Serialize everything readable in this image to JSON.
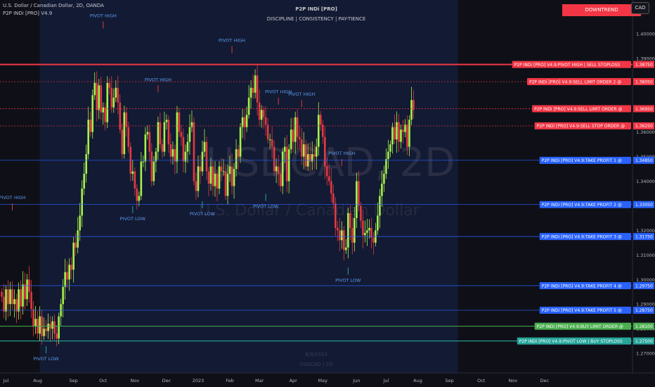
{
  "header": {
    "symbol_line": "U.S. Dollar / Canadian Dollar, 2D, OANDA",
    "indicator_line": "P2P INDi [PRO] V4.9",
    "title": "P2P INDi [PRO]",
    "subtitle": "DISCIPLINE  |  CONSISTENCY  |  PAY-TIENCE",
    "trend_badge": "DOWNTREND",
    "currency": "CAD"
  },
  "watermark": {
    "symbol": "USDCAD, 2D",
    "name": "U.S. Dollar / Canadian Dollar",
    "date": "8/9/2023",
    "small": "USDCAD | 2D"
  },
  "colors": {
    "background": "#0f1017",
    "highlight": "#131a33",
    "bull": "#a6f24a",
    "bear": "#e23a42",
    "sell_red": "#f23645",
    "take_profit_blue": "#2962ff",
    "buy_green": "#4caf50",
    "buy_stop_teal": "#26a69a",
    "annotation": "#5b9cf0"
  },
  "chart_data": {
    "type": "candlestick",
    "y_axis": {
      "min": 1.262,
      "max": 1.412,
      "ticks": [
        "1.27000",
        "1.28000",
        "1.29000",
        "1.30000",
        "1.31000",
        "1.32000",
        "1.34000",
        "1.35000",
        "1.36000",
        "1.39000",
        "1.40000"
      ]
    },
    "x_axis": {
      "ticks": [
        {
          "label": "Jul",
          "bar": 2
        },
        {
          "label": "Aug",
          "bar": 17
        },
        {
          "label": "Sep",
          "bar": 34
        },
        {
          "label": "Oct",
          "bar": 48
        },
        {
          "label": "Nov",
          "bar": 63
        },
        {
          "label": "Dec",
          "bar": 78
        },
        {
          "label": "2023",
          "bar": 93
        },
        {
          "label": "Feb",
          "bar": 108
        },
        {
          "label": "Mar",
          "bar": 122
        },
        {
          "label": "Apr",
          "bar": 138
        },
        {
          "label": "May",
          "bar": 152
        },
        {
          "label": "Jun",
          "bar": 168
        },
        {
          "label": "Jul",
          "bar": 182
        },
        {
          "label": "Aug",
          "bar": 197
        },
        {
          "label": "Sep",
          "bar": 212
        },
        {
          "label": "Oct",
          "bar": 227
        },
        {
          "label": "Nov",
          "bar": 242
        },
        {
          "label": "Dec",
          "bar": 257
        }
      ]
    },
    "highlight_range": {
      "start_bar": 18,
      "end_bar": 216
    },
    "close": [
      1.293,
      1.287,
      1.296,
      1.29,
      1.296,
      1.29,
      1.292,
      1.287,
      1.296,
      1.289,
      1.298,
      1.292,
      1.3,
      1.295,
      1.288,
      1.281,
      1.284,
      1.278,
      1.285,
      1.277,
      1.28,
      1.279,
      1.282,
      1.28,
      1.283,
      1.278,
      1.276,
      1.285,
      1.29,
      1.297,
      1.303,
      1.3,
      1.306,
      1.304,
      1.315,
      1.313,
      1.32,
      1.326,
      1.337,
      1.343,
      1.351,
      1.365,
      1.36,
      1.375,
      1.38,
      1.369,
      1.379,
      1.368,
      1.37,
      1.364,
      1.38,
      1.378,
      1.37,
      1.374,
      1.378,
      1.372,
      1.361,
      1.351,
      1.368,
      1.362,
      1.354,
      1.343,
      1.344,
      1.337,
      1.332,
      1.334,
      1.348,
      1.348,
      1.359,
      1.36,
      1.352,
      1.34,
      1.348,
      1.352,
      1.364,
      1.355,
      1.352,
      1.364,
      1.365,
      1.355,
      1.35,
      1.353,
      1.348,
      1.368,
      1.36,
      1.358,
      1.348,
      1.352,
      1.356,
      1.362,
      1.364,
      1.34,
      1.336,
      1.346,
      1.344,
      1.352,
      1.356,
      1.344,
      1.339,
      1.346,
      1.338,
      1.343,
      1.337,
      1.346,
      1.344,
      1.344,
      1.334,
      1.343,
      1.346,
      1.338,
      1.345,
      1.353,
      1.35,
      1.362,
      1.366,
      1.362,
      1.367,
      1.374,
      1.378,
      1.376,
      1.383,
      1.372,
      1.365,
      1.369,
      1.366,
      1.363,
      1.357,
      1.357,
      1.354,
      1.344,
      1.346,
      1.343,
      1.338,
      1.352,
      1.354,
      1.34,
      1.353,
      1.361,
      1.356,
      1.366,
      1.358,
      1.357,
      1.35,
      1.355,
      1.346,
      1.351,
      1.348,
      1.351,
      1.35,
      1.354,
      1.367,
      1.363,
      1.358,
      1.346,
      1.342,
      1.34,
      1.335,
      1.331,
      1.321,
      1.32,
      1.316,
      1.32,
      1.312,
      1.313,
      1.327,
      1.321,
      1.315,
      1.325,
      1.34,
      1.33,
      1.324,
      1.318,
      1.319,
      1.32,
      1.321,
      1.317,
      1.315,
      1.32,
      1.326,
      1.334,
      1.339,
      1.343,
      1.349,
      1.352,
      1.355,
      1.362,
      1.357,
      1.364,
      1.356,
      1.361,
      1.36,
      1.363,
      1.354,
      1.365,
      1.373,
      1.369
    ],
    "annotations": [
      {
        "text": "PIVOT HIGH",
        "bar": 5,
        "price": 1.327,
        "kind": "high"
      },
      {
        "text": "PIVOT LOW",
        "bar": 21,
        "price": 1.274,
        "kind": "low"
      },
      {
        "text": "PIVOT HIGH",
        "bar": 48,
        "price": 1.401,
        "kind": "high"
      },
      {
        "text": "PIVOT LOW",
        "bar": 62,
        "price": 1.331,
        "kind": "low"
      },
      {
        "text": "PIVOT HIGH",
        "bar": 74,
        "price": 1.375,
        "kind": "high"
      },
      {
        "text": "PIVOT LOW",
        "bar": 95,
        "price": 1.333,
        "kind": "low"
      },
      {
        "text": "PIVOT HIGH",
        "bar": 109,
        "price": 1.391,
        "kind": "high"
      },
      {
        "text": "PIVOT LOW",
        "bar": 125,
        "price": 1.336,
        "kind": "low"
      },
      {
        "text": "PIVOT HIGH",
        "bar": 131,
        "price": 1.37,
        "kind": "high"
      },
      {
        "text": "PIVOT HIGH",
        "bar": 142,
        "price": 1.369,
        "kind": "high"
      },
      {
        "text": "PIVOT HIGH",
        "bar": 161,
        "price": 1.345,
        "kind": "high"
      },
      {
        "text": "PIVOT LOW",
        "bar": 164,
        "price": 1.306,
        "kind": "low"
      }
    ],
    "levels": [
      {
        "label": "P2P INDi [PRO] V4.9:PIVOT HIGH | SELL STOPLOSS",
        "value": "1.38750",
        "price": 1.3875,
        "kind": "sell_stop"
      },
      {
        "label": "P2P INDi [PRO] V4.9:SELL LIMIT ORDER 2 @",
        "value": "1.38050",
        "price": 1.3805,
        "kind": "sell"
      },
      {
        "label": "P2P INDi [PRO] V4.9:SELL LIMIT ORDER @",
        "value": "1.36950",
        "price": 1.3695,
        "kind": "sell"
      },
      {
        "label": "P2P INDi [PRO] V4.9:SELL STOP ORDER @",
        "value": "1.36250",
        "price": 1.3625,
        "kind": "sell"
      },
      {
        "label": "P2P INDi [PRO] V4.9:TAKE PROFIT 1 @",
        "value": "1.34850",
        "price": 1.3485,
        "kind": "tp"
      },
      {
        "label": "P2P INDi [PRO] V4.9:TAKE PROFIT 2 @",
        "value": "1.33050",
        "price": 1.3305,
        "kind": "tp"
      },
      {
        "label": "P2P INDi [PRO] V4.9:TAKE PROFIT 3 @",
        "value": "1.31750",
        "price": 1.3175,
        "kind": "tp"
      },
      {
        "label": "P2P INDi [PRO] V4.9:TAKE PROFIT 4 @",
        "value": "1.29750",
        "price": 1.2975,
        "kind": "tp"
      },
      {
        "label": "P2P INDi [PRO] V4.9:TAKE PROFIT 5 @",
        "value": "1.28750",
        "price": 1.2875,
        "kind": "tp"
      },
      {
        "label": "P2P INDi [PRO] V4.9:BUY LIMIT ORDER @",
        "value": "1.28100",
        "price": 1.281,
        "kind": "buy"
      },
      {
        "label": "P2P INDi [PRO] V4.9:PIVOT LOW | BUY STOPLOSS",
        "value": "1.27500",
        "price": 1.275,
        "kind": "buy_stop"
      }
    ]
  }
}
